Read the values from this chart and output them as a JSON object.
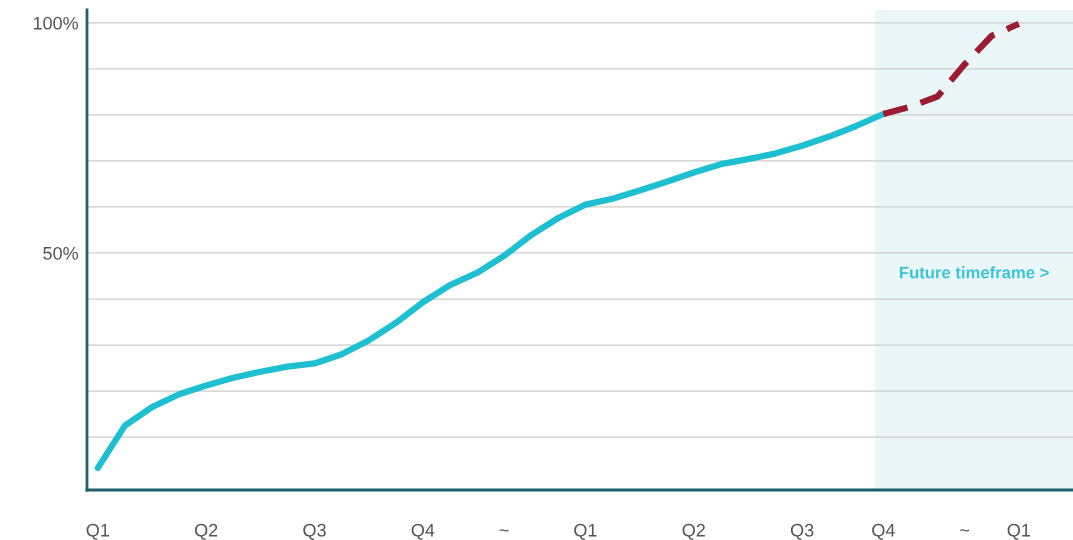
{
  "chart_data": {
    "type": "line",
    "categories": [
      "Q1",
      null,
      null,
      null,
      "Q2",
      null,
      null,
      null,
      "Q3",
      null,
      null,
      null,
      "Q4",
      null,
      null,
      "~",
      null,
      null,
      "Q1",
      null,
      null,
      null,
      "Q2",
      null,
      null,
      null,
      "Q3",
      null,
      null,
      "Q4",
      null,
      null,
      "~",
      null,
      "Q1",
      null,
      null
    ],
    "ylim": [
      -1.5,
      102.8
    ],
    "yticks": [
      {
        "value": 10,
        "label": null
      },
      {
        "value": 20,
        "label": null
      },
      {
        "value": 30,
        "label": null
      },
      {
        "value": 40,
        "label": null
      },
      {
        "value": 50,
        "label": "50%"
      },
      {
        "value": 60,
        "label": null
      },
      {
        "value": 70,
        "label": null
      },
      {
        "value": 80,
        "label": null
      },
      {
        "value": 90,
        "label": null
      },
      {
        "value": 100,
        "label": "100%"
      }
    ],
    "grid": "y",
    "legend": false,
    "marker": "none",
    "series": [
      {
        "color": "#1ebfd0",
        "line_style": "solid",
        "values": [
          3.3,
          12.5,
          16.5,
          19.3,
          21.2,
          22.9,
          24.2,
          25.3,
          26,
          28,
          31,
          34.8,
          39.3,
          43,
          45.7,
          49.4,
          53.9,
          57.6,
          60.5,
          61.8,
          63.6,
          65.5,
          67.5,
          69.3,
          70.4,
          71.6,
          73.3,
          75.3,
          77.6,
          80.2,
          null,
          null,
          null,
          null,
          null,
          null,
          null
        ]
      },
      {
        "color": "#9b1c2e",
        "line_style": "dashed",
        "values": [
          null,
          null,
          null,
          null,
          null,
          null,
          null,
          null,
          null,
          null,
          null,
          null,
          null,
          null,
          null,
          null,
          null,
          null,
          null,
          null,
          null,
          null,
          null,
          null,
          null,
          null,
          null,
          null,
          null,
          80.2,
          81.8,
          84,
          91,
          97.2,
          99.8,
          null,
          null
        ]
      }
    ],
    "annotations": [
      "Future timeframe >"
    ]
  }
}
